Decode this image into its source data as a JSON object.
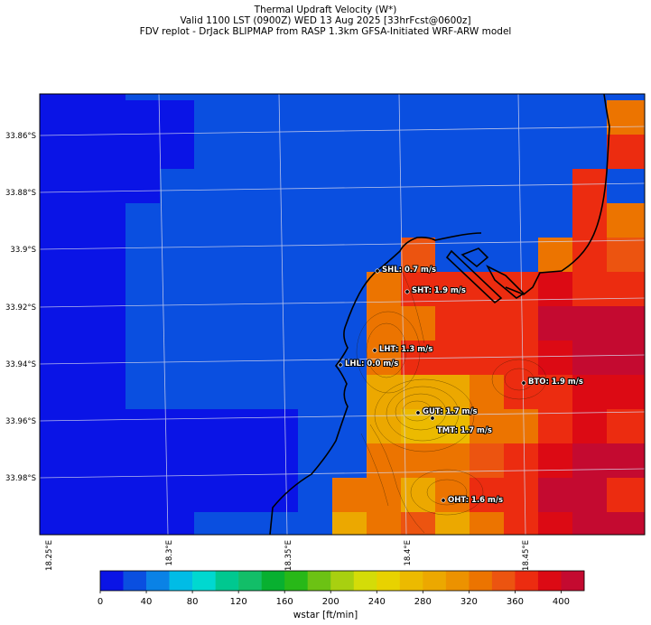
{
  "header": {
    "title_line1": "Thermal Updraft Velocity (W*)",
    "title_line2": "Valid 1100 LST (0900Z) WED 13 Aug 2025 [33hrFcst@0600z]",
    "title_line3": "FDV replot - DrJack BLIPMAP from RASP 1.3km GFSA-Initiated WRF-ARW model"
  },
  "axes": {
    "lat_ticks": [
      "33.86°S",
      "33.88°S",
      "33.9°S",
      "33.92°S",
      "33.94°S",
      "33.96°S",
      "33.98°S"
    ],
    "lon_ticks": [
      "18.25°E",
      "18.3°E",
      "18.35°E",
      "18.4°E",
      "18.45°E"
    ]
  },
  "stations": [
    {
      "id": "SHL",
      "label": "SHL: 0.7 m/s",
      "value_ms": 0.7
    },
    {
      "id": "SHT",
      "label": "SHT: 1.9 m/s",
      "value_ms": 1.9
    },
    {
      "id": "LHT",
      "label": "LHT: 1.3 m/s",
      "value_ms": 1.3
    },
    {
      "id": "LHL",
      "label": "LHL: 0.0 m/s",
      "value_ms": 0.0
    },
    {
      "id": "BTO",
      "label": "BTO: 1.9 m/s",
      "value_ms": 1.9
    },
    {
      "id": "GUT",
      "label": "GUT: 1.7 m/s",
      "value_ms": 1.7
    },
    {
      "id": "TMT",
      "label": "TMT: 1.7 m/s",
      "value_ms": 1.7
    },
    {
      "id": "OHT",
      "label": "OHT: 1.6 m/s",
      "value_ms": 1.6
    }
  ],
  "colorbar": {
    "label": "wstar [ft/min]",
    "ticks": [
      "0",
      "40",
      "80",
      "120",
      "160",
      "200",
      "240",
      "280",
      "320",
      "360",
      "400"
    ],
    "colors": [
      "#0a14e6",
      "#0a4fe0",
      "#0a82e6",
      "#00bce6",
      "#00d8d0",
      "#00c890",
      "#12be68",
      "#08b030",
      "#28b818",
      "#6cc214",
      "#a8d010",
      "#d4dc08",
      "#e8d200",
      "#ecba00",
      "#eca800",
      "#ec9200",
      "#ec7400",
      "#ec5410",
      "#ec2c10",
      "#dc0a14",
      "#c40a30"
    ]
  }
}
